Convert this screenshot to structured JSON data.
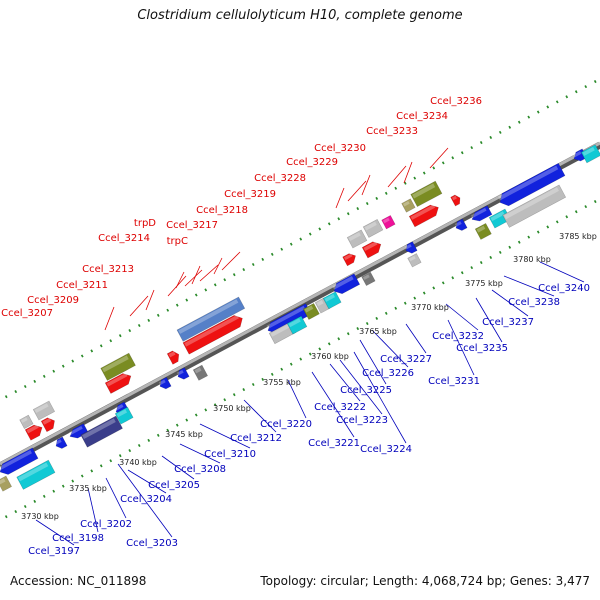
{
  "title": "Clostridium cellulolyticum H10, complete genome",
  "accession": "Accession: NC_011898",
  "topology": "Topology: circular; Length: 4,068,724 bp; Genes: 3,477",
  "colors": {
    "upper_label": "#dd0000",
    "lower_label": "#0000bb",
    "tick": "#2a8a2a"
  },
  "kbp_ticks": [
    "3730 kbp",
    "3735 kbp",
    "3740 kbp",
    "3745 kbp",
    "3750 kbp",
    "3755 kbp",
    "3760 kbp",
    "3765 kbp",
    "3770 kbp",
    "3775 kbp",
    "3780 kbp",
    "3785 kbp"
  ],
  "upper_genes": [
    "Ccel_3207",
    "Ccel_3209",
    "Ccel_3211",
    "Ccel_3213",
    "Ccel_3214",
    "trpD",
    "trpC",
    "Ccel_3217",
    "Ccel_3218",
    "Ccel_3219",
    "Ccel_3228",
    "Ccel_3229",
    "Ccel_3230",
    "Ccel_3233",
    "Ccel_3234",
    "Ccel_3236"
  ],
  "lower_genes": [
    "Ccel_3197",
    "Ccel_3198",
    "Ccel_3202",
    "Ccel_3203",
    "Ccel_3204",
    "Ccel_3205",
    "Ccel_3208",
    "Ccel_3210",
    "Ccel_3212",
    "Ccel_3220",
    "Ccel_3221",
    "Ccel_3222",
    "Ccel_3223",
    "Ccel_3224",
    "Ccel_3225",
    "Ccel_3226",
    "Ccel_3227",
    "Ccel_3231",
    "Ccel_3232",
    "Ccel_3235",
    "Ccel_3237",
    "Ccel_3238",
    "Ccel_3240"
  ]
}
